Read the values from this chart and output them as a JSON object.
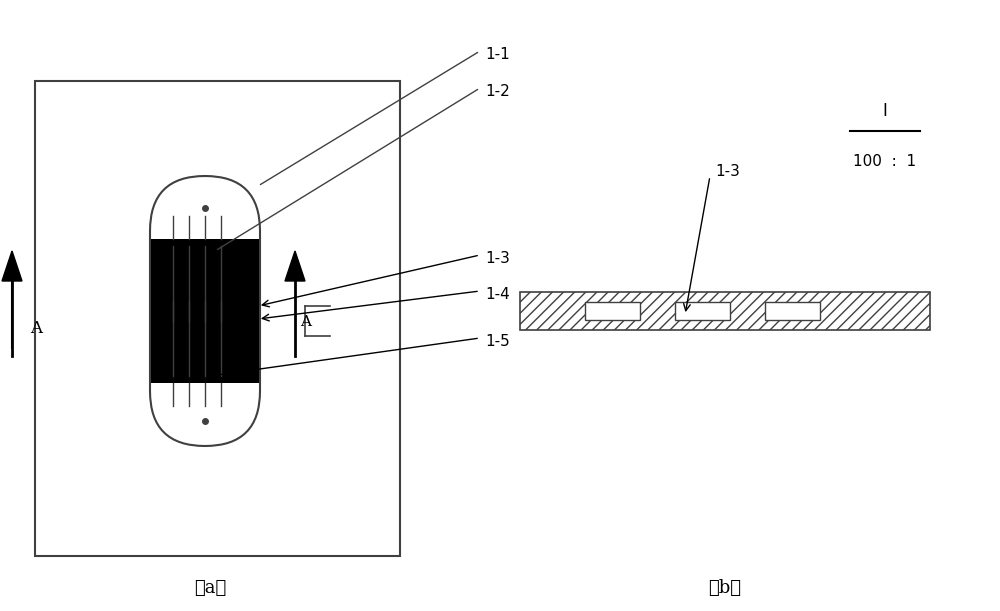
{
  "bg_color": "#ffffff",
  "line_color": "#404040",
  "black": "#000000",
  "label_1_1": "1-1",
  "label_1_2": "1-2",
  "label_1_3": "1-3",
  "label_1_4": "1-4",
  "label_1_5": "1-5",
  "label_a": "（a）",
  "label_b": "（b）",
  "scale_label": "I",
  "scale_ratio": "100  :  1"
}
